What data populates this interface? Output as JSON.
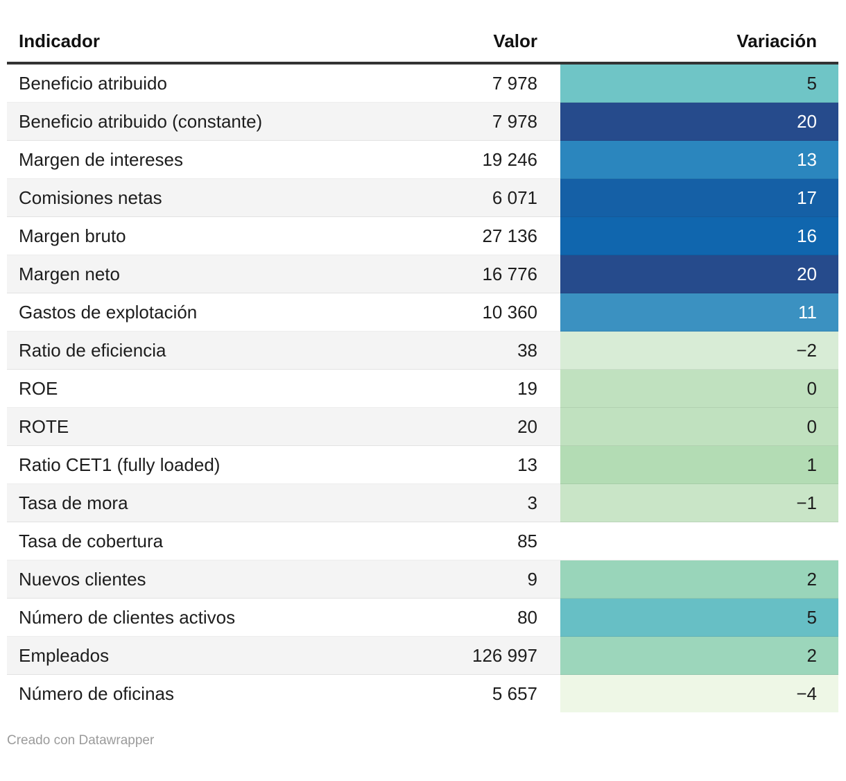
{
  "table": {
    "columns": [
      "Indicador",
      "Valor",
      "Variación"
    ],
    "rows": [
      {
        "indicador": "Beneficio atribuido",
        "valor": "7 978",
        "variacion": "5",
        "bg": "#6fc5c6",
        "fg": "#1d1d1d"
      },
      {
        "indicador": "Beneficio atribuido (constante)",
        "valor": "7 978",
        "variacion": "20",
        "bg": "#264b8c",
        "fg": "#ffffff"
      },
      {
        "indicador": "Margen de intereses",
        "valor": "19 246",
        "variacion": "13",
        "bg": "#2b86be",
        "fg": "#ffffff"
      },
      {
        "indicador": "Comisiones netas",
        "valor": "6 071",
        "variacion": "17",
        "bg": "#1560a6",
        "fg": "#ffffff"
      },
      {
        "indicador": "Margen bruto",
        "valor": "27 136",
        "variacion": "16",
        "bg": "#1066ae",
        "fg": "#ffffff"
      },
      {
        "indicador": "Margen neto",
        "valor": "16 776",
        "variacion": "20",
        "bg": "#264b8c",
        "fg": "#ffffff"
      },
      {
        "indicador": "Gastos de explotación",
        "valor": "10 360",
        "variacion": "11",
        "bg": "#3b91c1",
        "fg": "#ffffff"
      },
      {
        "indicador": "Ratio de eficiencia",
        "valor": "38",
        "variacion": "−2",
        "bg": "#d8ecd6",
        "fg": "#1d1d1d"
      },
      {
        "indicador": "ROE",
        "valor": "19",
        "variacion": "0",
        "bg": "#c0e1bf",
        "fg": "#1d1d1d"
      },
      {
        "indicador": "ROTE",
        "valor": "20",
        "variacion": "0",
        "bg": "#c0e1bf",
        "fg": "#1d1d1d"
      },
      {
        "indicador": "Ratio CET1 (fully loaded)",
        "valor": "13",
        "variacion": "1",
        "bg": "#b3dcb4",
        "fg": "#1d1d1d"
      },
      {
        "indicador": "Tasa de mora",
        "valor": "3",
        "variacion": "−1",
        "bg": "#c9e5c7",
        "fg": "#1d1d1d"
      },
      {
        "indicador": "Tasa de cobertura",
        "valor": "85",
        "variacion": ""
      },
      {
        "indicador": "Nuevos clientes",
        "valor": "9",
        "variacion": "2",
        "bg": "#99d5ba",
        "fg": "#1d1d1d"
      },
      {
        "indicador": "Número de clientes activos",
        "valor": "80",
        "variacion": "5",
        "bg": "#67bfc5",
        "fg": "#1d1d1d"
      },
      {
        "indicador": "Empleados",
        "valor": "126 997",
        "variacion": "2",
        "bg": "#9cd6bb",
        "fg": "#1d1d1d"
      },
      {
        "indicador": "Número de oficinas",
        "valor": "5 657",
        "variacion": "−4",
        "bg": "#eef7e6",
        "fg": "#1d1d1d"
      }
    ]
  },
  "footer": {
    "credit": "Creado con Datawrapper"
  },
  "colors": {
    "header_rule": "#333333",
    "row_alt_background": "#f4f4f4",
    "footer_text": "#9b9b9b"
  },
  "chart_data": {
    "type": "table",
    "columns": [
      "Indicador",
      "Valor",
      "Variación"
    ],
    "rows": [
      {
        "indicador": "Beneficio atribuido",
        "valor": 7978,
        "variacion": 5
      },
      {
        "indicador": "Beneficio atribuido (constante)",
        "valor": 7978,
        "variacion": 20
      },
      {
        "indicador": "Margen de intereses",
        "valor": 19246,
        "variacion": 13
      },
      {
        "indicador": "Comisiones netas",
        "valor": 6071,
        "variacion": 17
      },
      {
        "indicador": "Margen bruto",
        "valor": 27136,
        "variacion": 16
      },
      {
        "indicador": "Margen neto",
        "valor": 16776,
        "variacion": 20
      },
      {
        "indicador": "Gastos de explotación",
        "valor": 10360,
        "variacion": 11
      },
      {
        "indicador": "Ratio de eficiencia",
        "valor": 38,
        "variacion": -2
      },
      {
        "indicador": "ROE",
        "valor": 19,
        "variacion": 0
      },
      {
        "indicador": "ROTE",
        "valor": 20,
        "variacion": 0
      },
      {
        "indicador": "Ratio CET1 (fully loaded)",
        "valor": 13,
        "variacion": 1
      },
      {
        "indicador": "Tasa de mora",
        "valor": 3,
        "variacion": -1
      },
      {
        "indicador": "Tasa de cobertura",
        "valor": 85,
        "variacion": null
      },
      {
        "indicador": "Nuevos clientes",
        "valor": 9,
        "variacion": 2
      },
      {
        "indicador": "Número de clientes activos",
        "valor": 80,
        "variacion": 5
      },
      {
        "indicador": "Empleados",
        "valor": 126997,
        "variacion": 2
      },
      {
        "indicador": "Número de oficinas",
        "valor": 5657,
        "variacion": -4
      }
    ],
    "layout": "Variación column rendered as heatmap cells: dark navy/blue for high positive values, teal/green for small values, pale green for negative values; empty cell when no variation value"
  }
}
